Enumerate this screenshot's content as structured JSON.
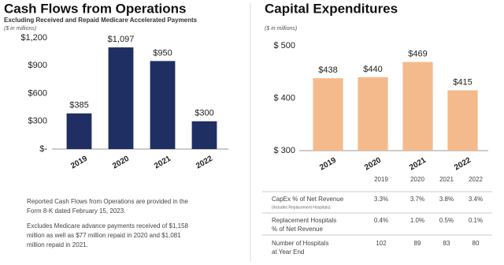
{
  "chart_data": [
    {
      "type": "bar",
      "title": "Cash Flows from Operations",
      "subtitle": "Excluding Received and Repaid Medicare Accelerated Payments",
      "unit_note": "($ in millions)",
      "categories": [
        "2019",
        "2020",
        "2021",
        "2022"
      ],
      "values": [
        385,
        1097,
        950,
        300
      ],
      "value_labels": [
        "$385",
        "$1,097",
        "$950",
        "$300"
      ],
      "color": "#1f2f63",
      "ylim": [
        0,
        1200
      ],
      "yticks": [
        {
          "value": 0,
          "label": "$-"
        },
        {
          "value": 300,
          "label": "$300"
        },
        {
          "value": 600,
          "label": "$600"
        },
        {
          "value": 900,
          "label": "$900"
        },
        {
          "value": 1200,
          "label": "$1,200"
        }
      ]
    },
    {
      "type": "bar",
      "title": "Capital Expenditures",
      "unit_note": "($ in millions)",
      "categories": [
        "2019",
        "2020",
        "2021",
        "2022"
      ],
      "values": [
        438,
        440,
        469,
        415
      ],
      "value_labels": [
        "$438",
        "$440",
        "$469",
        "$415"
      ],
      "color": "#f5ba8c",
      "ylim": [
        300,
        500
      ],
      "yticks": [
        {
          "value": 300,
          "label": "$ 300"
        },
        {
          "value": 400,
          "label": "$ 400"
        },
        {
          "value": 500,
          "label": "$ 500"
        }
      ]
    }
  ],
  "notes": [
    [
      "Reported Cash Flows from Operations are provided in the",
      "Form 8-K dated February 15, 2023."
    ],
    [
      "Excludes Medicare advance payments received of $1,158",
      "million as well as $77 million repaid in 2020 and $1,081",
      "million repaid in 2021."
    ]
  ],
  "table": {
    "columns": [
      "2019",
      "2020",
      "2021",
      "2022"
    ],
    "rows": [
      {
        "label": [
          "CapEx % of Net Revenue"
        ],
        "note": "(includes Replacement Hospitals)",
        "cells": [
          "3.3%",
          "3.7%",
          "3.8%",
          "3.4%"
        ]
      },
      {
        "label": [
          "Replacement Hospitals",
          "% of Net Revenue"
        ],
        "cells": [
          "0.4%",
          "1.0%",
          "0.5%",
          "0.1%"
        ]
      },
      {
        "label": [
          "Number of Hospitals",
          "at Year End"
        ],
        "cells": [
          "102",
          "89",
          "83",
          "80"
        ]
      }
    ]
  }
}
